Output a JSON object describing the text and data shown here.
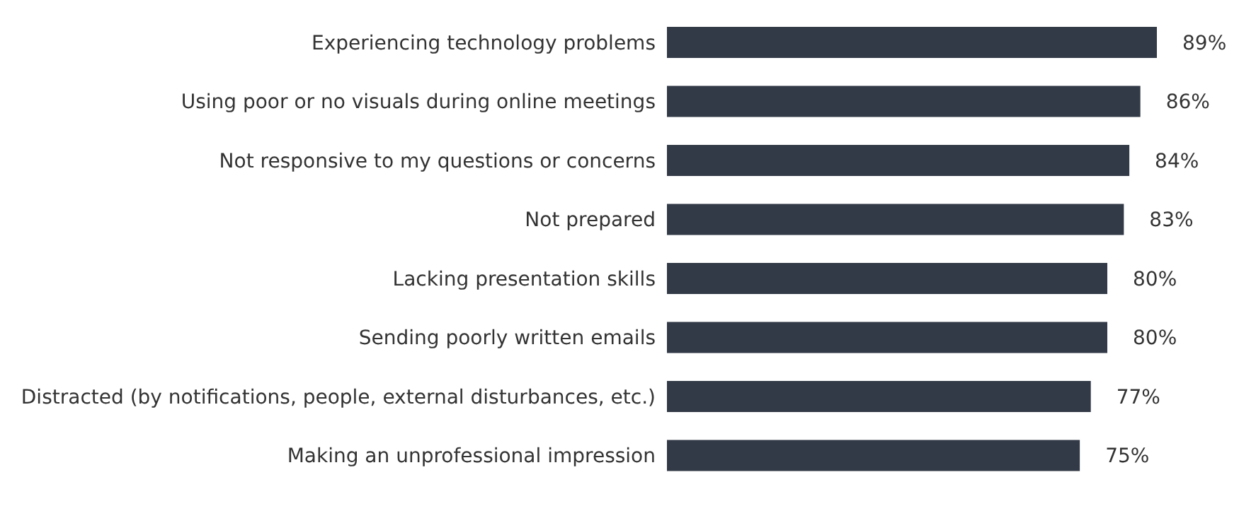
{
  "chart_data": {
    "type": "bar",
    "orientation": "horizontal",
    "categories": [
      "Experiencing technology problems",
      "Using poor or no visuals during online meetings",
      "Not responsive to my questions or concerns",
      "Not prepared",
      "Lacking presentation skills",
      "Sending poorly written emails",
      "Distracted (by notifications, people, external disturbances, etc.)",
      "Making an unprofessional impression"
    ],
    "values": [
      89,
      86,
      84,
      83,
      80,
      80,
      77,
      75
    ],
    "value_labels": [
      "89%",
      "86%",
      "84%",
      "83%",
      "80%",
      "80%",
      "77%",
      "75%"
    ],
    "color": "#323a47"
  }
}
